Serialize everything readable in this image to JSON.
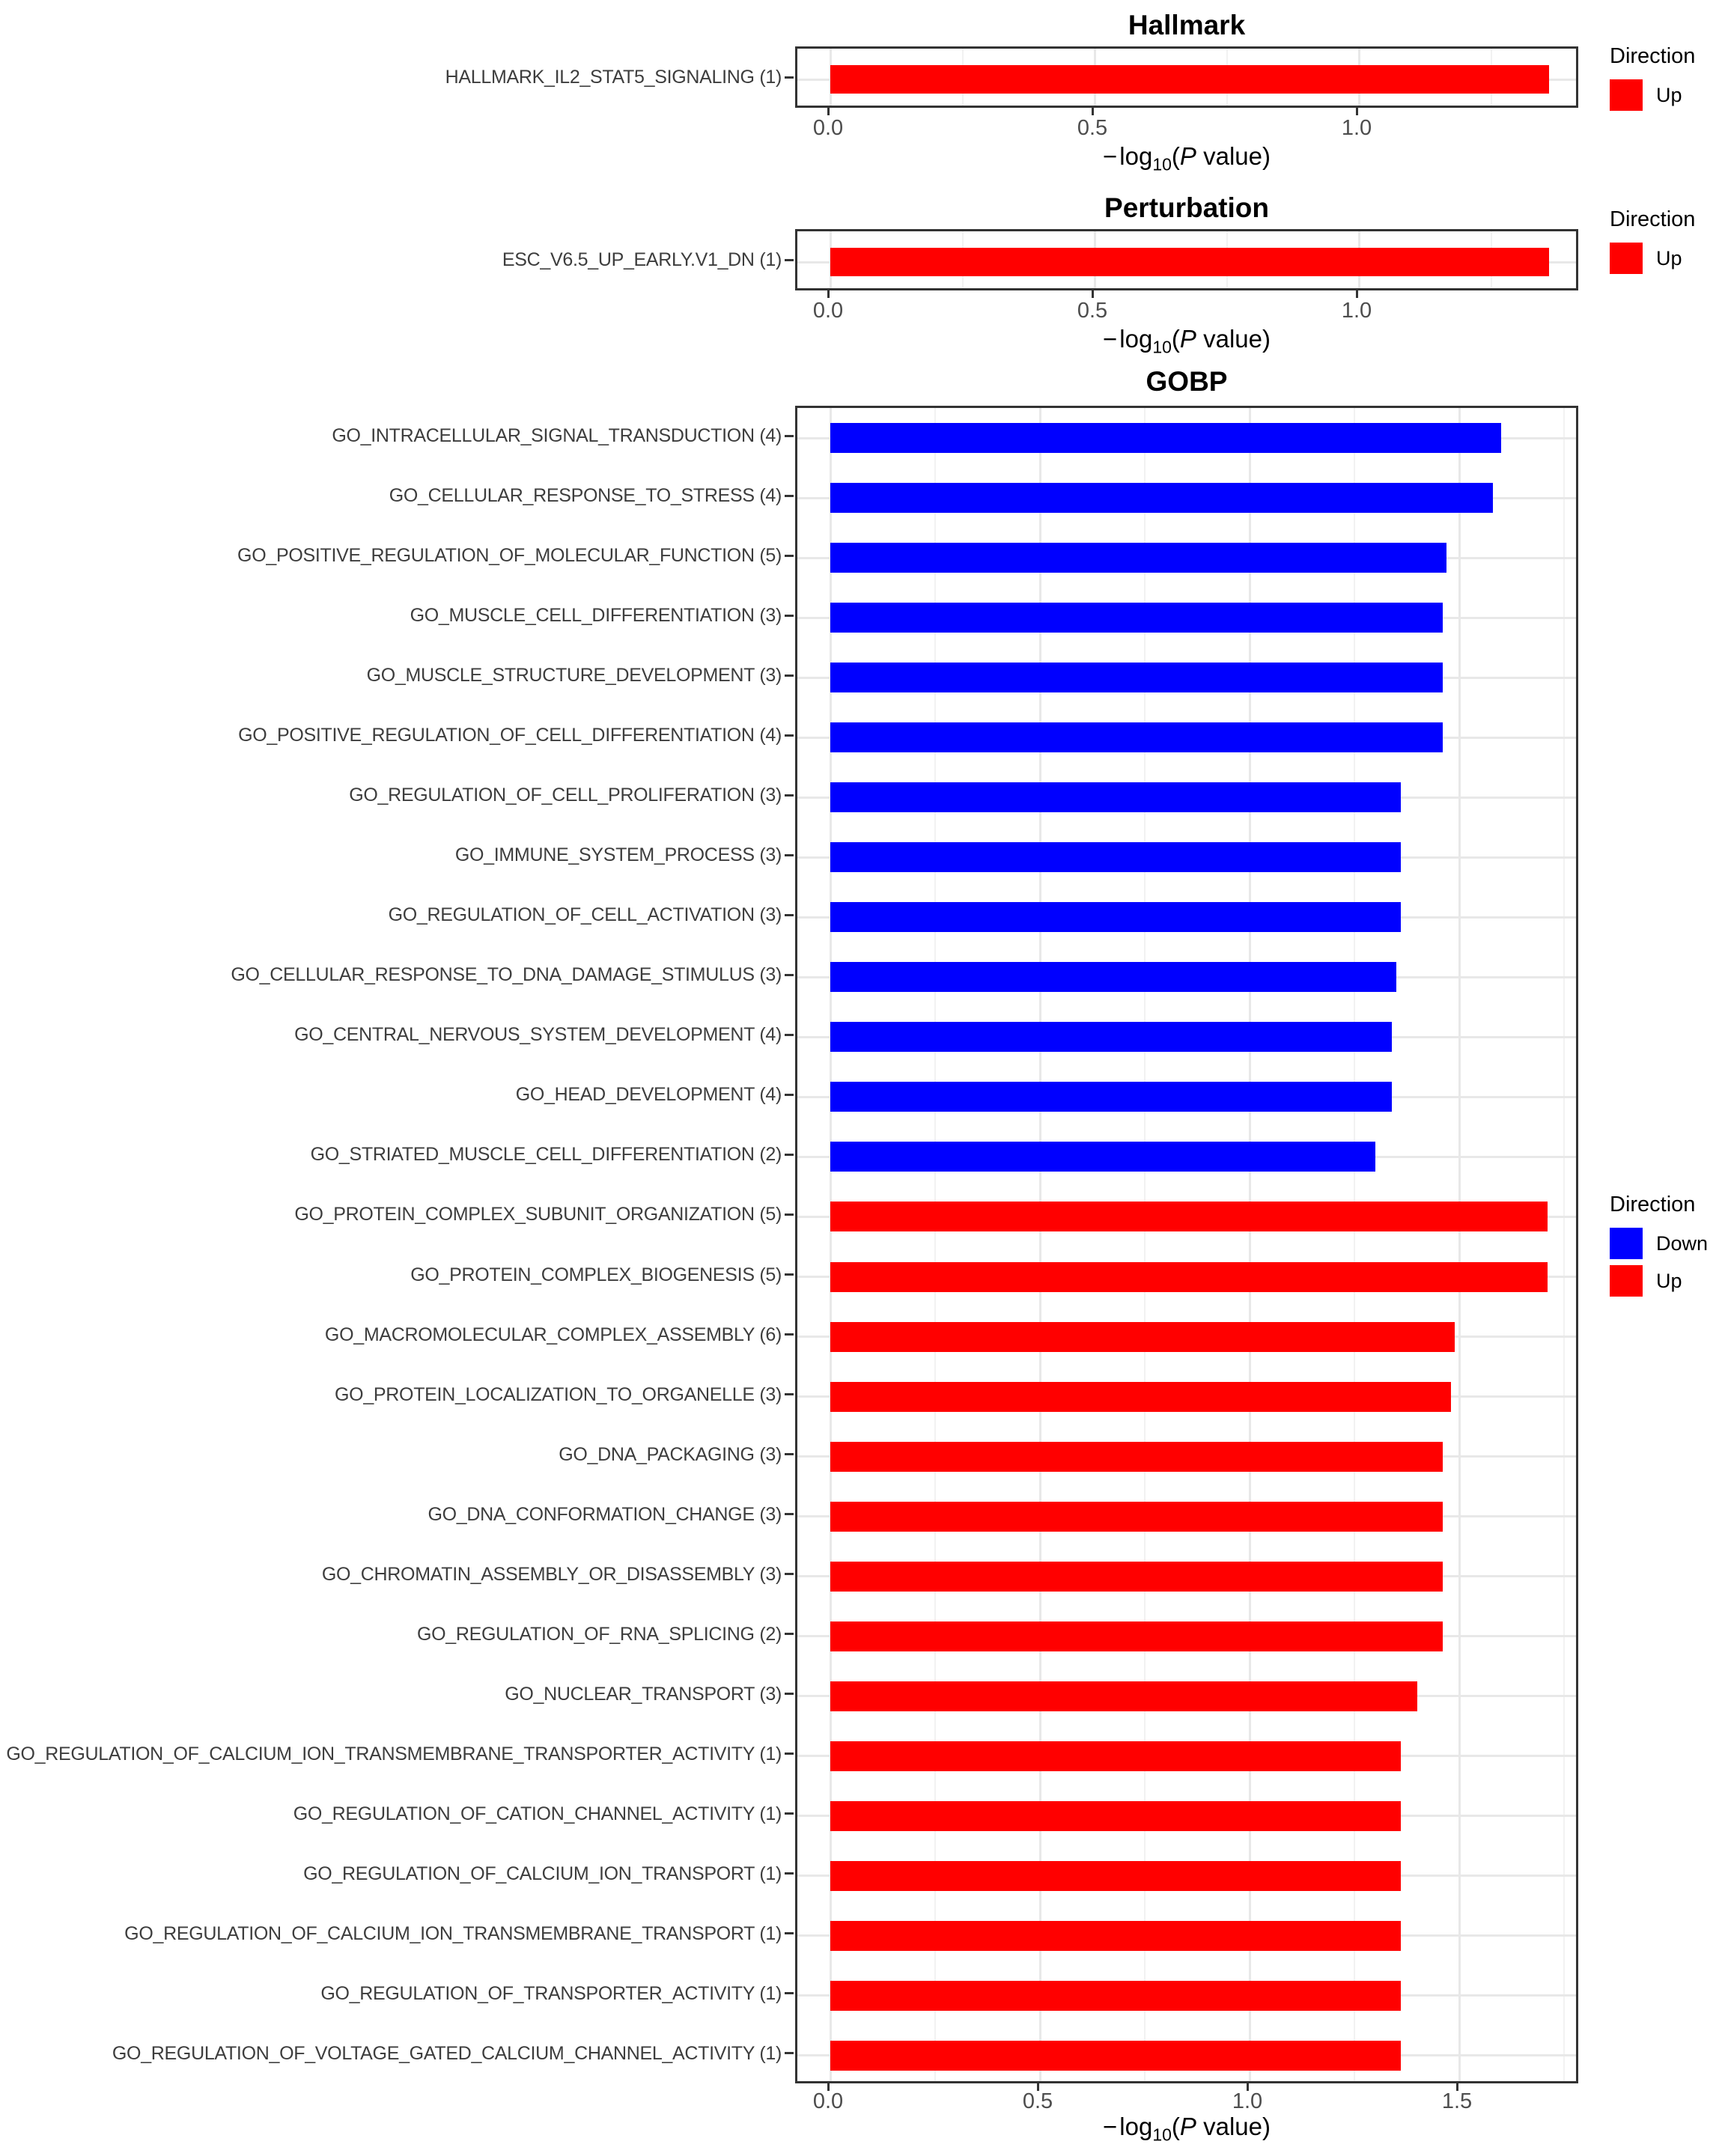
{
  "colors": {
    "up": "#FF0000",
    "down": "#0000FF"
  },
  "chart_data": [
    {
      "type": "bar",
      "orientation": "horizontal",
      "title": "Hallmark",
      "xlabel": "-log10(P value)",
      "xlabel_parts": {
        "minus": "−",
        "log": "log",
        "sub": "10",
        "open": "(",
        "p": "P",
        "rest": " value)"
      },
      "x_ticks": [
        "0.0",
        "0.5",
        "1.0"
      ],
      "xlim": [
        0,
        1.42
      ],
      "grid": "on",
      "legend": {
        "title": "Direction",
        "position": "right",
        "items": [
          {
            "label": "Up",
            "color": "#FF0000"
          }
        ]
      },
      "bars": [
        {
          "label": "HALLMARK_IL2_STAT5_SIGNALING (1)",
          "value": 1.36,
          "direction": "Up"
        }
      ]
    },
    {
      "type": "bar",
      "orientation": "horizontal",
      "title": "Perturbation",
      "xlabel": "-log10(P value)",
      "xlabel_parts": {
        "minus": "−",
        "log": "log",
        "sub": "10",
        "open": "(",
        "p": "P",
        "rest": " value)"
      },
      "x_ticks": [
        "0.0",
        "0.5",
        "1.0"
      ],
      "xlim": [
        0,
        1.42
      ],
      "grid": "on",
      "legend": {
        "title": "Direction",
        "position": "right",
        "items": [
          {
            "label": "Up",
            "color": "#FF0000"
          }
        ]
      },
      "bars": [
        {
          "label": "ESC_V6.5_UP_EARLY.V1_DN (1)",
          "value": 1.36,
          "direction": "Up"
        }
      ]
    },
    {
      "type": "bar",
      "orientation": "horizontal",
      "title": "GOBP",
      "xlabel": "-log10(P value)",
      "xlabel_parts": {
        "minus": "−",
        "log": "log",
        "sub": "10",
        "open": "(",
        "p": "P",
        "rest": " value)"
      },
      "x_ticks": [
        "0.0",
        "0.5",
        "1.0",
        "1.5"
      ],
      "xlim": [
        0,
        1.79
      ],
      "grid": "on",
      "legend": {
        "title": "Direction",
        "position": "right",
        "items": [
          {
            "label": "Down",
            "color": "#0000FF"
          },
          {
            "label": "Up",
            "color": "#FF0000"
          }
        ]
      },
      "bars": [
        {
          "label": "GO_INTRACELLULAR_SIGNAL_TRANSDUCTION (4)",
          "value": 1.6,
          "direction": "Down"
        },
        {
          "label": "GO_CELLULAR_RESPONSE_TO_STRESS (4)",
          "value": 1.58,
          "direction": "Down"
        },
        {
          "label": "GO_POSITIVE_REGULATION_OF_MOLECULAR_FUNCTION (5)",
          "value": 1.47,
          "direction": "Down"
        },
        {
          "label": "GO_MUSCLE_CELL_DIFFERENTIATION (3)",
          "value": 1.46,
          "direction": "Down"
        },
        {
          "label": "GO_MUSCLE_STRUCTURE_DEVELOPMENT (3)",
          "value": 1.46,
          "direction": "Down"
        },
        {
          "label": "GO_POSITIVE_REGULATION_OF_CELL_DIFFERENTIATION (4)",
          "value": 1.46,
          "direction": "Down"
        },
        {
          "label": "GO_REGULATION_OF_CELL_PROLIFERATION (3)",
          "value": 1.36,
          "direction": "Down"
        },
        {
          "label": "GO_IMMUNE_SYSTEM_PROCESS (3)",
          "value": 1.36,
          "direction": "Down"
        },
        {
          "label": "GO_REGULATION_OF_CELL_ACTIVATION (3)",
          "value": 1.36,
          "direction": "Down"
        },
        {
          "label": "GO_CELLULAR_RESPONSE_TO_DNA_DAMAGE_STIMULUS (3)",
          "value": 1.35,
          "direction": "Down"
        },
        {
          "label": "GO_CENTRAL_NERVOUS_SYSTEM_DEVELOPMENT (4)",
          "value": 1.34,
          "direction": "Down"
        },
        {
          "label": "GO_HEAD_DEVELOPMENT (4)",
          "value": 1.34,
          "direction": "Down"
        },
        {
          "label": "GO_STRIATED_MUSCLE_CELL_DIFFERENTIATION (2)",
          "value": 1.3,
          "direction": "Down"
        },
        {
          "label": "GO_PROTEIN_COMPLEX_SUBUNIT_ORGANIZATION (5)",
          "value": 1.71,
          "direction": "Up"
        },
        {
          "label": "GO_PROTEIN_COMPLEX_BIOGENESIS (5)",
          "value": 1.71,
          "direction": "Up"
        },
        {
          "label": "GO_MACROMOLECULAR_COMPLEX_ASSEMBLY (6)",
          "value": 1.49,
          "direction": "Up"
        },
        {
          "label": "GO_PROTEIN_LOCALIZATION_TO_ORGANELLE (3)",
          "value": 1.48,
          "direction": "Up"
        },
        {
          "label": "GO_DNA_PACKAGING (3)",
          "value": 1.46,
          "direction": "Up"
        },
        {
          "label": "GO_DNA_CONFORMATION_CHANGE (3)",
          "value": 1.46,
          "direction": "Up"
        },
        {
          "label": "GO_CHROMATIN_ASSEMBLY_OR_DISASSEMBLY (3)",
          "value": 1.46,
          "direction": "Up"
        },
        {
          "label": "GO_REGULATION_OF_RNA_SPLICING (2)",
          "value": 1.46,
          "direction": "Up"
        },
        {
          "label": "GO_NUCLEAR_TRANSPORT (3)",
          "value": 1.4,
          "direction": "Up"
        },
        {
          "label": "GO_REGULATION_OF_CALCIUM_ION_TRANSMEMBRANE_TRANSPORTER_ACTIVITY (1)",
          "value": 1.36,
          "direction": "Up"
        },
        {
          "label": "GO_REGULATION_OF_CATION_CHANNEL_ACTIVITY (1)",
          "value": 1.36,
          "direction": "Up"
        },
        {
          "label": "GO_REGULATION_OF_CALCIUM_ION_TRANSPORT (1)",
          "value": 1.36,
          "direction": "Up"
        },
        {
          "label": "GO_REGULATION_OF_CALCIUM_ION_TRANSMEMBRANE_TRANSPORT (1)",
          "value": 1.36,
          "direction": "Up"
        },
        {
          "label": "GO_REGULATION_OF_TRANSPORTER_ACTIVITY (1)",
          "value": 1.36,
          "direction": "Up"
        },
        {
          "label": "GO_REGULATION_OF_VOLTAGE_GATED_CALCIUM_CHANNEL_ACTIVITY (1)",
          "value": 1.36,
          "direction": "Up"
        }
      ]
    }
  ]
}
